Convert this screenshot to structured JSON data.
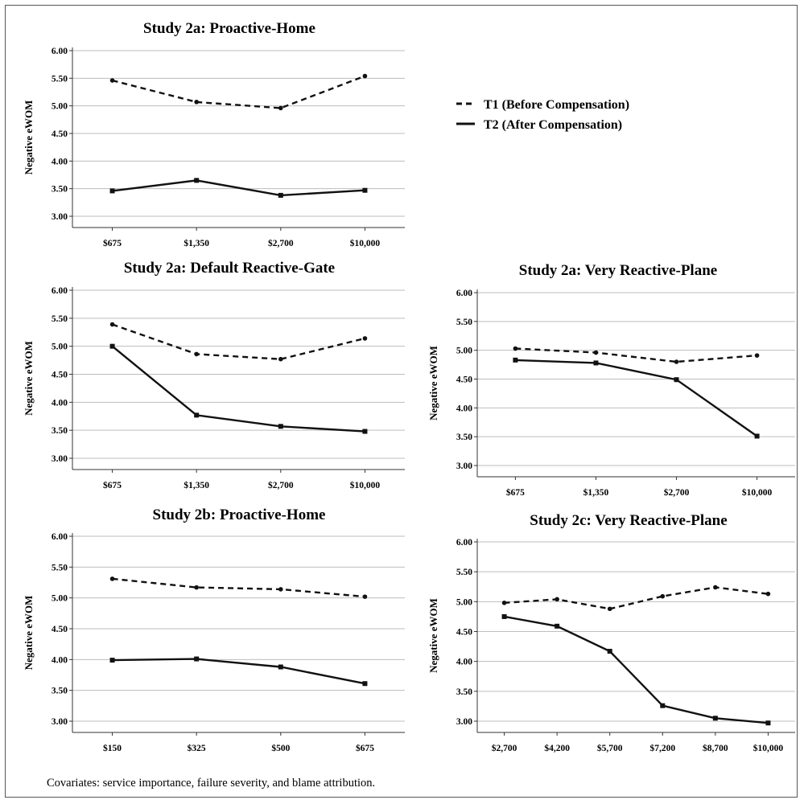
{
  "legend": {
    "t1": "T1 (Before Compensation)",
    "t2": "T2 (After Compensation)"
  },
  "note": "Covariates: service importance, failure severity, and blame attribution.",
  "chart_data": [
    {
      "type": "line",
      "title": "Study 2a: Proactive-Home",
      "ylabel": "Negative eWOM",
      "categories": [
        "$675",
        "$1,350",
        "$2,700",
        "$10,000"
      ],
      "ylim": [
        3.0,
        6.0
      ],
      "yticks": [
        "3.00",
        "3.50",
        "4.00",
        "4.50",
        "5.00",
        "5.50",
        "6.00"
      ],
      "series": [
        {
          "name": "T1 (Before Compensation)",
          "style": "dashed",
          "values": [
            5.46,
            5.07,
            4.96,
            5.54
          ]
        },
        {
          "name": "T2 (After Compensation)",
          "style": "solid",
          "values": [
            3.46,
            3.65,
            3.38,
            3.47
          ]
        }
      ]
    },
    {
      "type": "line",
      "title": "Study 2a: Default Reactive-Gate",
      "ylabel": "Negative eWOM",
      "categories": [
        "$675",
        "$1,350",
        "$2,700",
        "$10,000"
      ],
      "ylim": [
        3.0,
        6.0
      ],
      "yticks": [
        "3.00",
        "3.50",
        "4.00",
        "4.50",
        "5.00",
        "5.50",
        "6.00"
      ],
      "series": [
        {
          "name": "T1 (Before Compensation)",
          "style": "dashed",
          "values": [
            5.39,
            4.86,
            4.77,
            5.14
          ]
        },
        {
          "name": "T2 (After Compensation)",
          "style": "solid",
          "values": [
            5.0,
            3.77,
            3.57,
            3.48
          ]
        }
      ]
    },
    {
      "type": "line",
      "title": "Study 2a: Very Reactive-Plane",
      "ylabel": "Negative eWOM",
      "categories": [
        "$675",
        "$1,350",
        "$2,700",
        "$10,000"
      ],
      "ylim": [
        3.0,
        6.0
      ],
      "yticks": [
        "3.00",
        "3.50",
        "4.00",
        "4.50",
        "5.00",
        "5.50",
        "6.00"
      ],
      "series": [
        {
          "name": "T1 (Before Compensation)",
          "style": "dashed",
          "values": [
            5.03,
            4.96,
            4.8,
            4.91
          ]
        },
        {
          "name": "T2 (After Compensation)",
          "style": "solid",
          "values": [
            4.83,
            4.78,
            4.49,
            3.51
          ]
        }
      ]
    },
    {
      "type": "line",
      "title": "Study 2b: Proactive-Home",
      "ylabel": "Negative eWOM",
      "categories": [
        "$150",
        "$325",
        "$500",
        "$675"
      ],
      "ylim": [
        3.0,
        6.0
      ],
      "yticks": [
        "3.00",
        "3.50",
        "4.00",
        "4.50",
        "5.00",
        "5.50",
        "6.00"
      ],
      "series": [
        {
          "name": "T1 (Before Compensation)",
          "style": "dashed",
          "values": [
            5.31,
            5.17,
            5.14,
            5.02
          ]
        },
        {
          "name": "T2 (After Compensation)",
          "style": "solid",
          "values": [
            3.99,
            4.01,
            3.88,
            3.61
          ]
        }
      ]
    },
    {
      "type": "line",
      "title": "Study 2c: Very Reactive-Plane",
      "ylabel": "Negative eWOM",
      "categories": [
        "$2,700",
        "$4,200",
        "$5,700",
        "$7,200",
        "$8,700",
        "$10,000"
      ],
      "ylim": [
        3.0,
        6.0
      ],
      "yticks": [
        "3.00",
        "3.50",
        "4.00",
        "4.50",
        "5.00",
        "5.50",
        "6.00"
      ],
      "series": [
        {
          "name": "T1 (Before Compensation)",
          "style": "dashed",
          "values": [
            4.98,
            5.04,
            4.88,
            5.09,
            5.24,
            5.13
          ]
        },
        {
          "name": "T2 (After Compensation)",
          "style": "solid",
          "values": [
            4.75,
            4.59,
            4.17,
            3.26,
            3.05,
            2.97
          ]
        }
      ]
    }
  ]
}
